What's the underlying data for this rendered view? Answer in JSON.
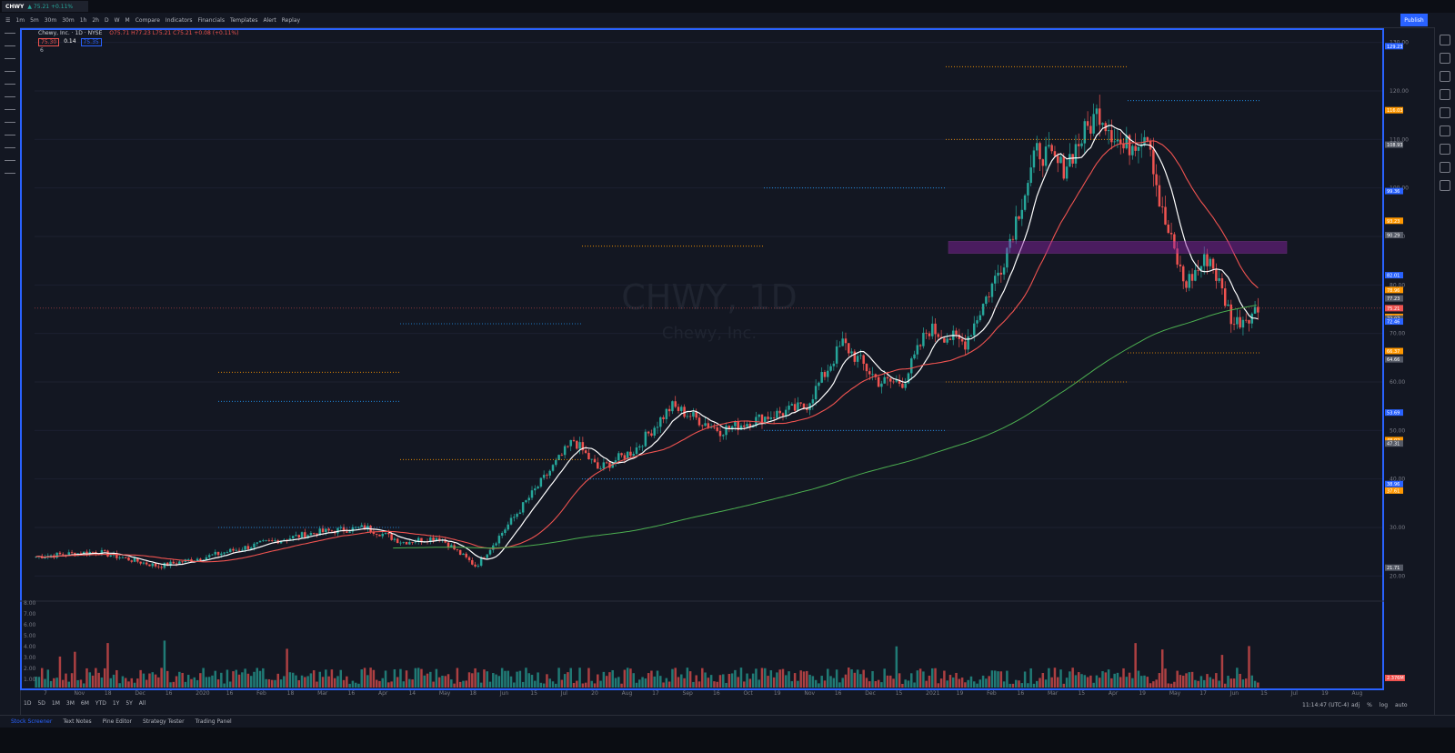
{
  "tab": {
    "symbol": "CHWY",
    "price_change": "▲ 75.21 +0.11%"
  },
  "toolbar": {
    "intervals": [
      "1m",
      "5m",
      "30m",
      "30m",
      "1h",
      "2h",
      "D",
      "W",
      "M"
    ],
    "items": [
      "Compare",
      "Indicators",
      "Financials",
      "Templates",
      "Alert",
      "Replay"
    ],
    "publish": "Publish"
  },
  "legend": {
    "title": "Chewy, Inc. · 1D · NYSE",
    "ohlc": "O75.71 H77.23 L75.21 C75.21 +0.08 (+0.11%)",
    "badge1": "75.30",
    "badge2": "0.14",
    "badge3": "75.35",
    "sub": "6"
  },
  "watermark": {
    "symbol": "CHWY, 1D",
    "name": "Chewy, Inc."
  },
  "colors": {
    "up": "#26a69a",
    "down": "#ef5350",
    "ma_fast": "#ffffff",
    "ma_mid": "#ef5350",
    "ma_slow": "#4caf50",
    "zone": "#8e24aa",
    "accent": "#2962ff"
  },
  "chart_data": {
    "type": "candlestick",
    "symbol": "CHWY",
    "interval": "1D",
    "exchange": "NYSE",
    "ylim": [
      15,
      132
    ],
    "price_ticks": [
      20,
      30,
      40,
      50,
      60,
      70,
      80,
      90,
      100,
      110,
      120,
      130
    ],
    "x_labels": [
      "7",
      "Nov",
      "18",
      "Dec",
      "16",
      "2020",
      "16",
      "Feb",
      "18",
      "Mar",
      "16",
      "Apr",
      "14",
      "May",
      "18",
      "Jun",
      "15",
      "Jul",
      "20",
      "Aug",
      "17",
      "Sep",
      "16",
      "Oct",
      "19",
      "Nov",
      "16",
      "Dec",
      "15",
      "2021",
      "19",
      "Feb",
      "16",
      "Mar",
      "15",
      "Apr",
      "19",
      "May",
      "17",
      "Jun",
      "15",
      "Jul",
      "19",
      "Aug"
    ],
    "anchors": [
      {
        "x": 0,
        "y": 24
      },
      {
        "x": 0.05,
        "y": 25
      },
      {
        "x": 0.1,
        "y": 22
      },
      {
        "x": 0.14,
        "y": 24
      },
      {
        "x": 0.19,
        "y": 27
      },
      {
        "x": 0.23,
        "y": 29
      },
      {
        "x": 0.27,
        "y": 30
      },
      {
        "x": 0.3,
        "y": 27
      },
      {
        "x": 0.33,
        "y": 28
      },
      {
        "x": 0.36,
        "y": 22
      },
      {
        "x": 0.4,
        "y": 35
      },
      {
        "x": 0.44,
        "y": 48
      },
      {
        "x": 0.46,
        "y": 42
      },
      {
        "x": 0.49,
        "y": 46
      },
      {
        "x": 0.52,
        "y": 55
      },
      {
        "x": 0.56,
        "y": 50
      },
      {
        "x": 0.6,
        "y": 53
      },
      {
        "x": 0.63,
        "y": 55
      },
      {
        "x": 0.66,
        "y": 68
      },
      {
        "x": 0.69,
        "y": 60
      },
      {
        "x": 0.71,
        "y": 60
      },
      {
        "x": 0.73,
        "y": 71
      },
      {
        "x": 0.76,
        "y": 68
      },
      {
        "x": 0.79,
        "y": 84
      },
      {
        "x": 0.82,
        "y": 108
      },
      {
        "x": 0.84,
        "y": 104
      },
      {
        "x": 0.87,
        "y": 116
      },
      {
        "x": 0.89,
        "y": 108
      },
      {
        "x": 0.91,
        "y": 112
      },
      {
        "x": 0.92,
        "y": 96
      },
      {
        "x": 0.94,
        "y": 80
      },
      {
        "x": 0.96,
        "y": 86
      },
      {
        "x": 0.98,
        "y": 72
      },
      {
        "x": 1,
        "y": 75
      }
    ],
    "right_axis_badges": [
      "129.23",
      "116.03",
      "108.93",
      "99.36",
      "93.23",
      "90.29",
      "82.01",
      "78.96",
      "77.23",
      "75.21",
      "73.42",
      "73.07",
      "72.46",
      "66.37",
      "64.66",
      "53.69",
      "48.02",
      "47.31",
      "38.96",
      "37.61",
      "21.71"
    ],
    "volume": {
      "ticks": [
        "8.00",
        "7.00",
        "6.00",
        "5.00",
        "4.00",
        "3.00",
        "2.00",
        "1.00"
      ],
      "last": "2.376M"
    },
    "x_range_selector": [
      "1D",
      "5D",
      "1M",
      "3M",
      "6M",
      "YTD",
      "1Y",
      "5Y",
      "All"
    ]
  },
  "footer": {
    "clock": "11:14:47 (UTC-4)",
    "scale": [
      "adj",
      "%",
      "log",
      "auto"
    ],
    "tabs": [
      "Stock Screener",
      "Text Notes",
      "Pine Editor",
      "Strategy Tester",
      "Trading Panel"
    ]
  }
}
